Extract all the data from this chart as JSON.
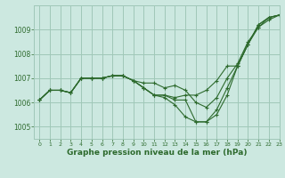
{
  "background_color": "#cce8e0",
  "grid_color": "#a0c8b8",
  "line_color": "#2d6a2d",
  "xlabel": "Graphe pression niveau de la mer (hPa)",
  "xlabel_fontsize": 6.5,
  "ylim": [
    1004.5,
    1010.0
  ],
  "xlim": [
    -0.5,
    23
  ],
  "yticks": [
    1005,
    1006,
    1007,
    1008,
    1009
  ],
  "xticks": [
    0,
    1,
    2,
    3,
    4,
    5,
    6,
    7,
    8,
    9,
    10,
    11,
    12,
    13,
    14,
    15,
    16,
    17,
    18,
    19,
    20,
    21,
    22,
    23
  ],
  "series": [
    [
      1006.1,
      1006.5,
      1006.5,
      1006.4,
      1007.0,
      1007.0,
      1007.0,
      1007.1,
      1007.1,
      1006.9,
      1006.6,
      1006.3,
      1006.3,
      1006.1,
      1006.1,
      1005.2,
      1005.2,
      1005.5,
      1006.3,
      1007.5,
      1008.4,
      1009.2,
      1009.5,
      1009.6
    ],
    [
      1006.1,
      1006.5,
      1006.5,
      1006.4,
      1007.0,
      1007.0,
      1007.0,
      1007.1,
      1007.1,
      1006.9,
      1006.8,
      1006.8,
      1006.6,
      1006.7,
      1006.5,
      1006.0,
      1005.8,
      1006.2,
      1007.0,
      1007.6,
      1008.5,
      1009.1,
      1009.4,
      1009.6
    ],
    [
      1006.1,
      1006.5,
      1006.5,
      1006.4,
      1007.0,
      1007.0,
      1007.0,
      1007.1,
      1007.1,
      1006.9,
      1006.6,
      1006.3,
      1006.2,
      1005.9,
      1005.4,
      1005.2,
      1005.2,
      1005.7,
      1006.6,
      1007.5,
      1008.4,
      1009.2,
      1009.5,
      1009.6
    ],
    [
      1006.1,
      1006.5,
      1006.5,
      1006.4,
      1007.0,
      1007.0,
      1007.0,
      1007.1,
      1007.1,
      1006.9,
      1006.6,
      1006.3,
      1006.3,
      1006.2,
      1006.3,
      1006.3,
      1006.5,
      1006.9,
      1007.5,
      1007.5,
      1008.4,
      1009.1,
      1009.5,
      1009.6
    ]
  ]
}
